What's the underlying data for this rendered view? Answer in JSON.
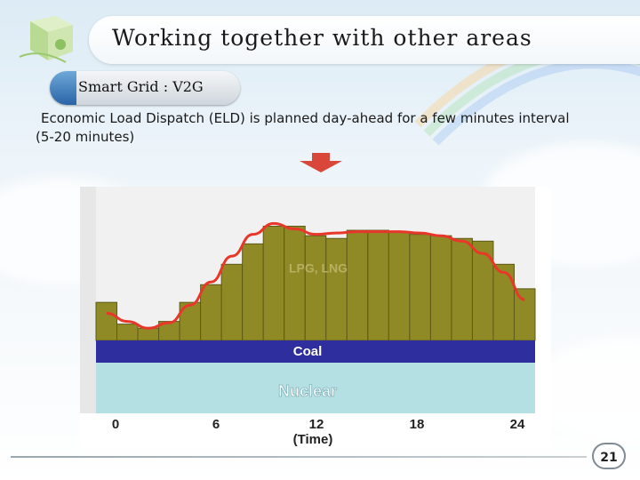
{
  "slide": {
    "title": "Working together with other areas",
    "subtitle": "Smart Grid : V2G",
    "body": "Economic Load Dispatch (ELD) is planned day-ahead for a few minutes interval (5-20 minutes)",
    "page_number": "21"
  },
  "colors": {
    "bars": "#8f8a26",
    "load_curve": "#e8372a",
    "coal_band": "#2e2e9e",
    "nuclear_band": "#b4dfe3",
    "arrow": "#d9473a"
  },
  "chart_data": {
    "type": "bar",
    "xlabel": "(Time)",
    "x_ticks": [
      "0",
      "6",
      "12",
      "18",
      "24"
    ],
    "xlim": [
      0,
      24
    ],
    "layers": [
      "Nuclear",
      "Coal",
      "LPG, LNG"
    ],
    "bar_top_levels": [
      0.28,
      0.12,
      0.09,
      0.14,
      0.28,
      0.41,
      0.56,
      0.71,
      0.84,
      0.84,
      0.77,
      0.75,
      0.81,
      0.81,
      0.8,
      0.78,
      0.77,
      0.75,
      0.73,
      0.56,
      0.38
    ],
    "load_curve_levels": [
      0.2,
      0.14,
      0.09,
      0.13,
      0.26,
      0.43,
      0.62,
      0.78,
      0.86,
      0.82,
      0.78,
      0.79,
      0.8,
      0.8,
      0.8,
      0.79,
      0.77,
      0.73,
      0.64,
      0.5,
      0.3
    ]
  }
}
